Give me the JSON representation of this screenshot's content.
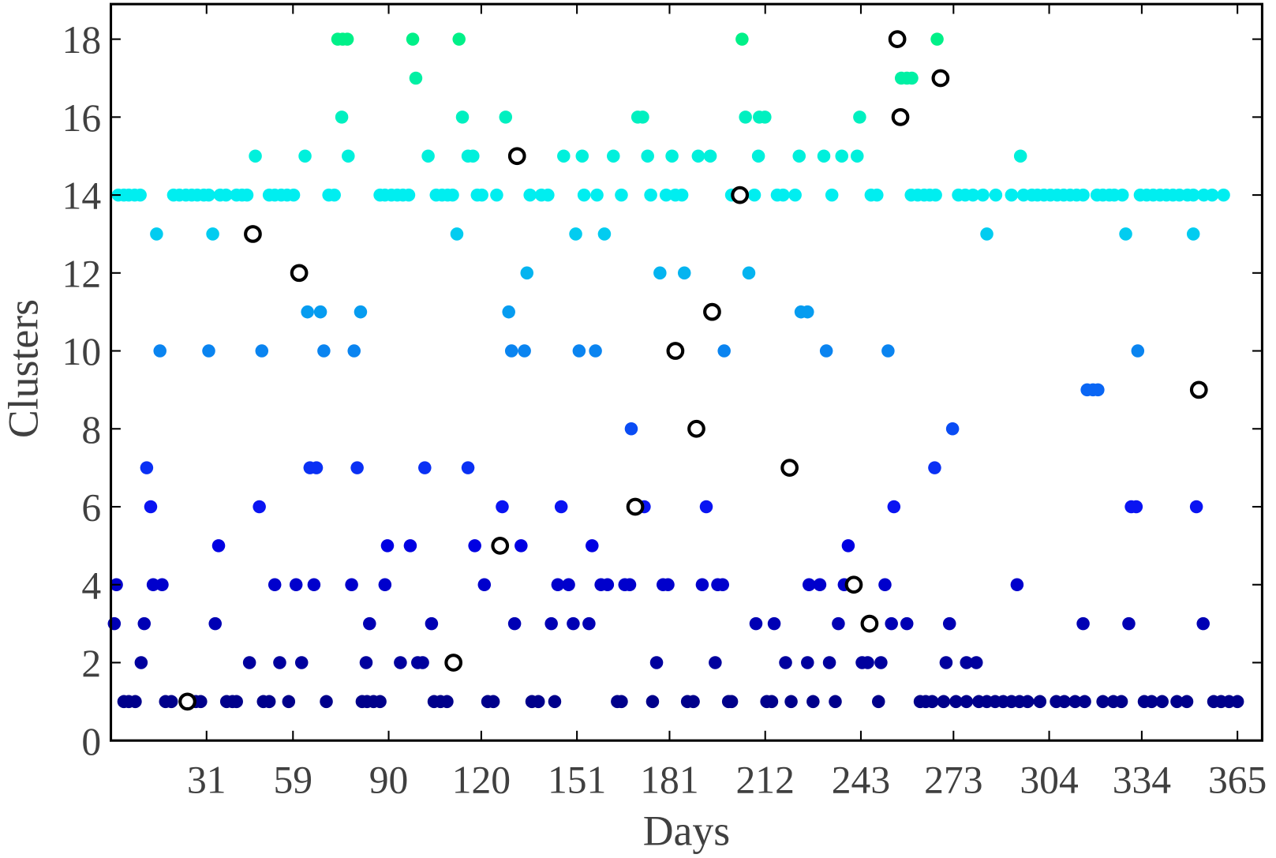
{
  "chart_data": {
    "type": "scatter",
    "xlabel": "Days",
    "ylabel": "Clusters",
    "xlim": [
      0,
      373
    ],
    "ylim": [
      0,
      18.9
    ],
    "xticks": [
      31,
      59,
      90,
      120,
      151,
      181,
      212,
      243,
      273,
      304,
      334,
      365
    ],
    "yticks": [
      0,
      2,
      4,
      6,
      8,
      10,
      12,
      14,
      16,
      18
    ],
    "series": [
      {
        "color": "#00008b",
        "x": [
          4.2,
          5.8,
          7.9,
          17.7,
          19.6,
          27.5,
          29.1,
          37.5,
          39.4,
          40.7,
          49.4,
          51.3,
          57.6,
          69.8,
          81.4,
          83.0,
          85.1,
          87.2,
          104.7,
          106.8,
          108.9,
          122.1,
          123.9,
          136.4,
          138.5,
          143.8,
          164.1,
          165.4,
          175.5,
          186.8,
          188.7,
          200.1,
          201.1,
          212.5,
          214.1,
          220.4,
          227.5,
          234.7,
          248.7,
          262.2,
          264.0,
          266.1,
          269.8,
          273.8,
          277.2,
          281.2,
          283.8,
          286.5,
          289.1,
          291.8,
          294.4,
          297.0,
          301.0,
          306.3,
          308.9,
          312.4,
          315.5,
          321.4,
          324.8,
          327.4,
          334.8,
          337.2,
          340.6,
          345.4,
          348.6,
          357.3,
          359.7,
          362.3,
          365.0
        ],
        "values": [
          1,
          1,
          1,
          1,
          1,
          1,
          1,
          1,
          1,
          1,
          1,
          1,
          1,
          1,
          1,
          1,
          1,
          1,
          1,
          1,
          1,
          1,
          1,
          1,
          1,
          1,
          1,
          1,
          1,
          1,
          1,
          1,
          1,
          1,
          1,
          1,
          1,
          1,
          1,
          1,
          1,
          1,
          1,
          1,
          1,
          1,
          1,
          1,
          1,
          1,
          1,
          1,
          1,
          1,
          1,
          1,
          1,
          1,
          1,
          1,
          1,
          1,
          1,
          1,
          1,
          1,
          1,
          1,
          1
        ]
      },
      {
        "color": "#00009e",
        "x": [
          9.8,
          44.9,
          54.7,
          61.8,
          82.7,
          93.8,
          99.4,
          101.0,
          176.8,
          195.8,
          218.6,
          225.7,
          232.8,
          243.4,
          245.2,
          249.5,
          270.6,
          277.2,
          280.4
        ],
        "values": [
          2,
          2,
          2,
          2,
          2,
          2,
          2,
          2,
          2,
          2,
          2,
          2,
          2,
          2,
          2,
          2,
          2,
          2,
          2
        ]
      },
      {
        "color": "#0000b4",
        "x": [
          1.1,
          10.8,
          33.8,
          83.8,
          103.9,
          130.8,
          142.7,
          149.8,
          154.9,
          209.0,
          214.9,
          235.7,
          252.9,
          257.9,
          271.7,
          315.0,
          329.8,
          353.9
        ],
        "values": [
          3,
          3,
          3,
          3,
          3,
          3,
          3,
          3,
          3,
          3,
          3,
          3,
          3,
          3,
          3,
          3,
          3,
          3
        ]
      },
      {
        "color": "#0000cc",
        "x": [
          1.8,
          13.7,
          16.6,
          53.1,
          60.0,
          65.8,
          78.0,
          88.8,
          121.0,
          144.8,
          148.3,
          158.8,
          160.9,
          166.5,
          168.1,
          178.9,
          180.5,
          191.6,
          196.6,
          198.2,
          226.2,
          229.7,
          237.6,
          250.8,
          293.6
        ],
        "values": [
          4,
          4,
          4,
          4,
          4,
          4,
          4,
          4,
          4,
          4,
          4,
          4,
          4,
          4,
          4,
          4,
          4,
          4,
          4,
          4,
          4,
          4,
          4,
          4,
          4
        ]
      },
      {
        "color": "#0000e2",
        "x": [
          34.9,
          89.6,
          97.0,
          117.9,
          132.9,
          155.9,
          238.9
        ],
        "values": [
          5,
          5,
          5,
          5,
          5,
          5,
          5
        ]
      },
      {
        "color": "#0a14f2",
        "x": [
          12.9,
          48.1,
          126.8,
          145.9,
          172.8,
          192.9,
          253.7,
          330.6,
          332.2,
          351.7
        ],
        "values": [
          6,
          6,
          6,
          6,
          6,
          6,
          6,
          6,
          6,
          6
        ]
      },
      {
        "color": "#0a30f4",
        "x": [
          11.6,
          64.5,
          66.6,
          79.8,
          101.7,
          115.7,
          266.9
        ],
        "values": [
          7,
          7,
          7,
          7,
          7,
          7,
          7
        ]
      },
      {
        "color": "#0a4cf4",
        "x": [
          168.6,
          272.7
        ],
        "values": [
          8,
          8
        ]
      },
      {
        "color": "#0a66f4",
        "x": [
          316.3,
          318.2,
          319.8
        ],
        "values": [
          9,
          9,
          9
        ]
      },
      {
        "color": "#0a84f0",
        "x": [
          15.9,
          31.7,
          48.9,
          69.0,
          78.8,
          129.8,
          134.0,
          151.7,
          157.0,
          198.7,
          231.8,
          251.8,
          332.7
        ],
        "values": [
          10,
          10,
          10,
          10,
          10,
          10,
          10,
          10,
          10,
          10,
          10,
          10,
          10
        ]
      },
      {
        "color": "#069cf0",
        "x": [
          63.7,
          67.9,
          80.9,
          128.9,
          223.6,
          225.7
        ],
        "values": [
          11,
          11,
          11,
          11,
          11,
          11
        ]
      },
      {
        "color": "#04b4f0",
        "x": [
          134.8,
          177.9,
          185.8,
          206.7
        ],
        "values": [
          12,
          12,
          12,
          12
        ]
      },
      {
        "color": "#02ccf0",
        "x": [
          14.8,
          33.0,
          112.1,
          150.6,
          159.9,
          283.8,
          328.8,
          350.7
        ],
        "values": [
          13,
          13,
          13,
          13,
          13,
          13,
          13,
          13
        ]
      },
      {
        "color": "#00eef0",
        "x": [
          2.4,
          4.2,
          5.8,
          7.7,
          9.5,
          20.3,
          22.2,
          24.3,
          26.2,
          28.0,
          30.1,
          31.7,
          35.4,
          37.3,
          40.7,
          42.5,
          44.1,
          51.3,
          53.1,
          55.2,
          57.1,
          59.2,
          70.6,
          72.4,
          87.2,
          88.8,
          90.9,
          92.8,
          94.6,
          96.5,
          105.4,
          107.3,
          109.1,
          110.7,
          118.7,
          120.2,
          125.0,
          135.8,
          139.5,
          141.6,
          153.3,
          157.5,
          165.4,
          174.9,
          179.9,
          182.9,
          185.0,
          201.1,
          202.7,
          208.5,
          215.9,
          217.8,
          221.7,
          233.6,
          246.3,
          248.2,
          259.3,
          261.4,
          263.5,
          265.3,
          267.2,
          274.6,
          276.8,
          279.3,
          282.5,
          286.7,
          291.8,
          295.7,
          298.4,
          300.2,
          302.3,
          304.4,
          306.6,
          308.7,
          310.8,
          312.9,
          315.0,
          319.5,
          321.4,
          323.5,
          325.1,
          327.7,
          333.5,
          335.6,
          337.7,
          339.9,
          342.0,
          344.1,
          346.2,
          348.8,
          350.7,
          354.1,
          356.8,
          360.5
        ],
        "values": [
          14,
          14,
          14,
          14,
          14,
          14,
          14,
          14,
          14,
          14,
          14,
          14,
          14,
          14,
          14,
          14,
          14,
          14,
          14,
          14,
          14,
          14,
          14,
          14,
          14,
          14,
          14,
          14,
          14,
          14,
          14,
          14,
          14,
          14,
          14,
          14,
          14,
          14,
          14,
          14,
          14,
          14,
          14,
          14,
          14,
          14,
          14,
          14,
          14,
          14,
          14,
          14,
          14,
          14,
          14,
          14,
          14,
          14,
          14,
          14,
          14,
          14,
          14,
          14,
          14,
          14,
          14,
          14,
          14,
          14,
          14,
          14,
          14,
          14,
          14,
          14,
          14,
          14,
          14,
          14,
          14,
          14,
          14,
          14,
          14,
          14,
          14,
          14,
          14,
          14,
          14,
          14,
          14,
          14
        ]
      },
      {
        "color": "#00f0dc",
        "x": [
          46.8,
          62.9,
          76.9,
          102.8,
          115.7,
          117.3,
          146.7,
          152.7,
          162.8,
          173.9,
          181.8,
          190.3,
          194.2,
          209.8,
          223.0,
          231.0,
          236.8,
          241.8,
          294.7
        ],
        "values": [
          15,
          15,
          15,
          15,
          15,
          15,
          15,
          15,
          15,
          15,
          15,
          15,
          15,
          15,
          15,
          15,
          15,
          15,
          15
        ]
      },
      {
        "color": "#00f0c0",
        "x": [
          74.8,
          113.9,
          127.9,
          170.7,
          172.3,
          205.6,
          210.1,
          211.9,
          242.6
        ],
        "values": [
          16,
          16,
          16,
          16,
          16,
          16,
          16,
          16,
          16
        ]
      },
      {
        "color": "#00f0a4",
        "x": [
          98.8,
          256.1,
          257.9,
          259.5
        ],
        "values": [
          17,
          17,
          17,
          17
        ]
      },
      {
        "color": "#00f088",
        "x": [
          73.5,
          75.1,
          76.6,
          97.8,
          112.8,
          204.5,
          267.7
        ],
        "values": [
          18,
          18,
          18,
          18,
          18,
          18,
          18
        ]
      },
      {
        "color": "#000000",
        "marker": "open-circle",
        "x": [
          24.8,
          46.0,
          61.0,
          111.0,
          126.1,
          131.6,
          169.9,
          182.9,
          189.7,
          194.8,
          203.8,
          219.9,
          240.7,
          245.8,
          254.8,
          255.8,
          268.8,
          352.5
        ],
        "values": [
          1,
          13,
          12,
          2,
          5,
          15,
          6,
          10,
          8,
          11,
          14,
          7,
          4,
          3,
          18,
          16,
          17,
          9
        ]
      }
    ]
  }
}
